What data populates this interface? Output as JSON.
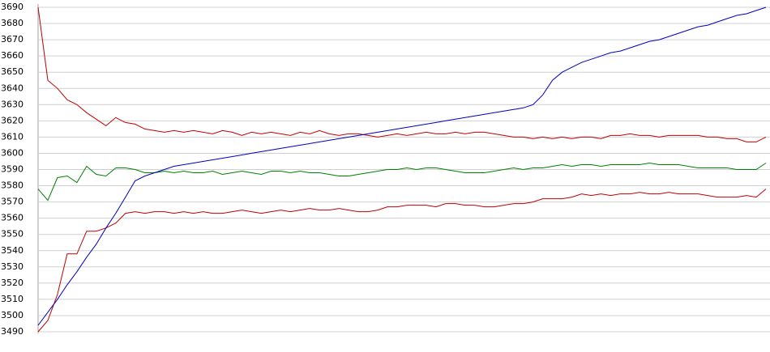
{
  "chart_data": {
    "type": "line",
    "categories": [
      null,
      null,
      null,
      null,
      null,
      null,
      null,
      null,
      null,
      null,
      null,
      null,
      null,
      null,
      null,
      null,
      null,
      null,
      null,
      null,
      null,
      null,
      null,
      null,
      null,
      null,
      null,
      null,
      null,
      null,
      null,
      null,
      null,
      null,
      null,
      null,
      null,
      null,
      null,
      null,
      null,
      null,
      null,
      null,
      null,
      null,
      null,
      null,
      null,
      null,
      null,
      null,
      null,
      null,
      null,
      null,
      null,
      null,
      null,
      null,
      null,
      null,
      null,
      null,
      null,
      null,
      null,
      null,
      null,
      null,
      null,
      null,
      null,
      null,
      null,
      null
    ],
    "series": [
      {
        "color": "#c00000",
        "values": [
          3690,
          3645,
          3640,
          3633,
          3630,
          3625,
          3621,
          3617,
          3622,
          3619,
          3618,
          3615,
          3614,
          3613,
          3614,
          3613,
          3614,
          3613,
          3612,
          3614,
          3613,
          3611,
          3613,
          3612,
          3613,
          3612,
          3611,
          3613,
          3612,
          3614,
          3612,
          3611,
          3612,
          3612,
          3611,
          3610,
          3611,
          3612,
          3611,
          3612,
          3613,
          3612,
          3612,
          3613,
          3612,
          3613,
          3613,
          3612,
          3611,
          3610,
          3610,
          3609,
          3610,
          3609,
          3610,
          3609,
          3610,
          3610,
          3609,
          3611,
          3611,
          3612,
          3611,
          3611,
          3610,
          3611,
          3611,
          3611,
          3611,
          3610,
          3610,
          3609,
          3609,
          3607,
          3607,
          3610
        ]
      },
      {
        "color": "#c00000",
        "values": [
          3490,
          3497,
          3513,
          3538,
          3538,
          3552,
          3552,
          3554,
          3557,
          3563,
          3564,
          3563,
          3564,
          3564,
          3563,
          3564,
          3563,
          3564,
          3563,
          3563,
          3564,
          3565,
          3564,
          3563,
          3564,
          3565,
          3564,
          3565,
          3566,
          3565,
          3565,
          3566,
          3565,
          3564,
          3564,
          3565,
          3567,
          3567,
          3568,
          3568,
          3568,
          3567,
          3569,
          3569,
          3568,
          3568,
          3567,
          3567,
          3568,
          3569,
          3569,
          3570,
          3572,
          3572,
          3572,
          3573,
          3575,
          3574,
          3575,
          3574,
          3575,
          3575,
          3576,
          3575,
          3575,
          3576,
          3575,
          3575,
          3575,
          3574,
          3573,
          3573,
          3573,
          3574,
          3573,
          3578
        ]
      },
      {
        "color": "#008000",
        "values": [
          3578,
          3571,
          3585,
          3586,
          3582,
          3592,
          3587,
          3586,
          3591,
          3591,
          3590,
          3588,
          3588,
          3589,
          3588,
          3589,
          3588,
          3588,
          3589,
          3587,
          3588,
          3589,
          3588,
          3587,
          3589,
          3589,
          3588,
          3589,
          3588,
          3588,
          3587,
          3586,
          3586,
          3587,
          3588,
          3589,
          3590,
          3590,
          3591,
          3590,
          3591,
          3591,
          3590,
          3589,
          3588,
          3588,
          3588,
          3589,
          3590,
          3591,
          3590,
          3591,
          3591,
          3592,
          3593,
          3592,
          3593,
          3593,
          3592,
          3593,
          3593,
          3593,
          3593,
          3594,
          3593,
          3593,
          3593,
          3592,
          3591,
          3591,
          3591,
          3591,
          3590,
          3590,
          3590,
          3594
        ]
      },
      {
        "color": "#0000c0",
        "values": [
          3494,
          3502,
          3510,
          3519,
          3527,
          3536,
          3544,
          3554,
          3563,
          3573,
          3583,
          3586,
          3588,
          3590,
          3592,
          3593,
          3594,
          3595,
          3596,
          3597,
          3598,
          3599,
          3600,
          3601,
          3602,
          3603,
          3604,
          3605,
          3606,
          3607,
          3608,
          3609,
          3610,
          3611,
          3612,
          3613,
          3614,
          3615,
          3616,
          3617,
          3618,
          3619,
          3620,
          3621,
          3622,
          3623,
          3624,
          3625,
          3626,
          3627,
          3628,
          3630,
          3636,
          3645,
          3650,
          3653,
          3656,
          3658,
          3660,
          3662,
          3663,
          3665,
          3667,
          3669,
          3670,
          3672,
          3674,
          3676,
          3678,
          3679,
          3681,
          3683,
          3685,
          3686,
          3688,
          3690
        ]
      }
    ],
    "ylim": [
      3490,
      3690
    ],
    "yticks": [
      3490,
      3500,
      3510,
      3520,
      3530,
      3540,
      3550,
      3560,
      3570,
      3580,
      3590,
      3600,
      3610,
      3620,
      3630,
      3640,
      3650,
      3660,
      3670,
      3680,
      3690
    ],
    "grid": true
  }
}
